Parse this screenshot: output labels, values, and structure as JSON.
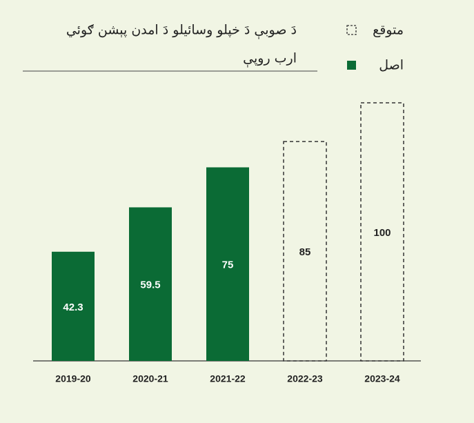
{
  "chart_data": {
    "type": "bar",
    "title": "دَ صوبې دَ خپلو وسائیلو دَ امدن پېشن ګوئي",
    "subtitle": "ارب روپې",
    "categories": [
      "2019-20",
      "2020-21",
      "2021-22",
      "2022-23",
      "2023-24"
    ],
    "series": [
      {
        "name": "اصل",
        "color": "#0b6b35",
        "style": "solid",
        "values": [
          42.3,
          59.5,
          75,
          null,
          null
        ]
      },
      {
        "name": "متوقع",
        "color": "#333333",
        "style": "dashed",
        "values": [
          null,
          null,
          null,
          85,
          100
        ]
      }
    ]
  }
}
